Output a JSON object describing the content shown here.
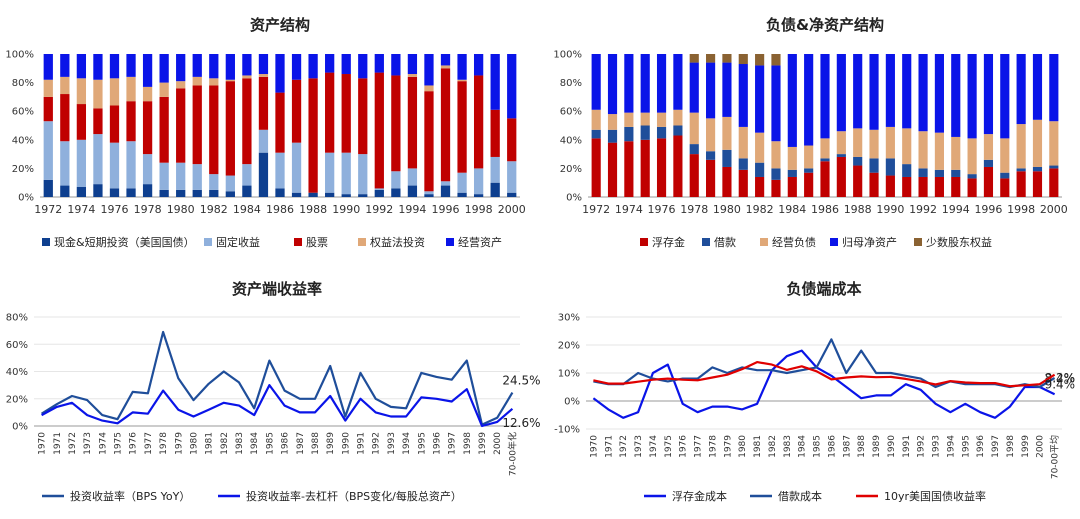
{
  "colors": {
    "cash": "#0e3f8f",
    "fixed": "#8fb0dc",
    "stocks": "#c00000",
    "equity_method": "#e0a878",
    "operating": "#0a14e8",
    "float": "#c00000",
    "borrowing": "#1f4e9a",
    "op_liab": "#e0a878",
    "net_assets": "#0a14e8",
    "minority": "#8a6232",
    "roi": "#1f4e9a",
    "roi_delev": "#0a14e8",
    "float_cost": "#0a14e8",
    "borrow_cost": "#1f4e9a",
    "treasury": "#e00000"
  },
  "chart_data": [
    {
      "id": "asset-structure",
      "type": "bar",
      "stacked": true,
      "title": "资产结构",
      "categories": [
        "1972",
        "1973",
        "1974",
        "1975",
        "1976",
        "1977",
        "1978",
        "1979",
        "1980",
        "1981",
        "1982",
        "1983",
        "1984",
        "1985",
        "1986",
        "1987",
        "1988",
        "1989",
        "1990",
        "1991",
        "1992",
        "1993",
        "1994",
        "1995",
        "1996",
        "1997",
        "1998",
        "1999",
        "2000"
      ],
      "tick_labels": [
        "1972",
        "1974",
        "1976",
        "1978",
        "1980",
        "1982",
        "1984",
        "1986",
        "1988",
        "1990",
        "1992",
        "1994",
        "1996",
        "1998",
        "2000"
      ],
      "ylim": [
        0,
        100
      ],
      "yticks": [
        "0%",
        "20%",
        "40%",
        "60%",
        "80%",
        "100%"
      ],
      "legend_position": "bottom",
      "series": [
        {
          "name": "现金&短期投资（美国国债）",
          "color_key": "cash",
          "values": [
            12,
            8,
            7,
            9,
            6,
            6,
            9,
            5,
            5,
            5,
            5,
            4,
            8,
            31,
            6,
            3,
            3,
            3,
            2,
            2,
            5,
            6,
            8,
            2,
            8,
            3,
            2,
            10,
            3
          ]
        },
        {
          "name": "固定收益",
          "color_key": "fixed",
          "values": [
            41,
            31,
            33,
            35,
            32,
            33,
            21,
            19,
            19,
            18,
            11,
            11,
            15,
            16,
            25,
            35,
            0,
            28,
            29,
            28,
            1,
            12,
            12,
            2,
            3,
            14,
            18,
            18,
            22
          ]
        },
        {
          "name": "股票",
          "color_key": "stocks",
          "values": [
            17,
            33,
            25,
            18,
            26,
            28,
            37,
            46,
            52,
            55,
            62,
            66,
            60,
            37,
            42,
            44,
            80,
            56,
            55,
            53,
            81,
            67,
            64,
            70,
            79,
            64,
            65,
            33,
            30
          ]
        },
        {
          "name": "权益法投资",
          "color_key": "equity_method",
          "values": [
            12,
            12,
            18,
            20,
            19,
            17,
            10,
            10,
            5,
            6,
            5,
            1,
            2,
            2,
            0,
            0,
            0,
            0,
            0,
            0,
            0,
            0,
            2,
            4,
            2,
            1,
            0,
            0,
            0
          ]
        },
        {
          "name": "经营资产",
          "color_key": "operating",
          "values": [
            18,
            16,
            17,
            18,
            17,
            16,
            23,
            20,
            19,
            16,
            17,
            18,
            15,
            14,
            27,
            18,
            17,
            13,
            14,
            17,
            13,
            15,
            14,
            22,
            8,
            18,
            15,
            39,
            45
          ]
        }
      ]
    },
    {
      "id": "liability-structure",
      "type": "bar",
      "stacked": true,
      "title": "负债&净资产结构",
      "categories": [
        "1972",
        "1973",
        "1974",
        "1975",
        "1976",
        "1977",
        "1978",
        "1979",
        "1980",
        "1981",
        "1982",
        "1983",
        "1984",
        "1985",
        "1986",
        "1987",
        "1988",
        "1989",
        "1990",
        "1991",
        "1992",
        "1993",
        "1994",
        "1995",
        "1996",
        "1997",
        "1998",
        "1999",
        "2000"
      ],
      "tick_labels": [
        "1972",
        "1974",
        "1976",
        "1978",
        "1980",
        "1982",
        "1984",
        "1986",
        "1988",
        "1990",
        "1992",
        "1994",
        "1996",
        "1998",
        "2000"
      ],
      "ylim": [
        0,
        100
      ],
      "yticks": [
        "0%",
        "20%",
        "40%",
        "60%",
        "80%",
        "100%"
      ],
      "legend_position": "bottom",
      "series": [
        {
          "name": "浮存金",
          "color_key": "float",
          "values": [
            41,
            38,
            39,
            40,
            41,
            43,
            30,
            26,
            21,
            19,
            14,
            12,
            14,
            17,
            25,
            28,
            22,
            17,
            15,
            14,
            14,
            14,
            14,
            13,
            21,
            13,
            18,
            18,
            20
          ]
        },
        {
          "name": "借款",
          "color_key": "borrowing",
          "values": [
            6,
            9,
            10,
            10,
            8,
            7,
            7,
            6,
            12,
            8,
            10,
            8,
            5,
            3,
            2,
            2,
            6,
            10,
            12,
            9,
            6,
            5,
            5,
            3,
            5,
            4,
            2,
            3,
            2
          ]
        },
        {
          "name": "经营负债",
          "color_key": "op_liab",
          "values": [
            14,
            11,
            10,
            9,
            10,
            11,
            22,
            23,
            23,
            22,
            21,
            19,
            16,
            16,
            14,
            16,
            20,
            20,
            22,
            25,
            26,
            26,
            23,
            25,
            18,
            24,
            31,
            33,
            31
          ]
        },
        {
          "name": "归母净资产",
          "color_key": "net_assets",
          "values": [
            39,
            42,
            41,
            41,
            41,
            39,
            35,
            39,
            38,
            44,
            47,
            53,
            65,
            64,
            59,
            54,
            52,
            53,
            51,
            52,
            54,
            55,
            58,
            59,
            56,
            59,
            49,
            46,
            47
          ]
        },
        {
          "name": "少数股东权益",
          "color_key": "minority",
          "values": [
            0,
            0,
            0,
            0,
            0,
            0,
            6,
            6,
            6,
            7,
            8,
            8,
            0,
            0,
            0,
            0,
            0,
            0,
            0,
            0,
            0,
            0,
            0,
            0,
            0,
            0,
            0,
            0,
            0
          ]
        }
      ]
    },
    {
      "id": "asset-return",
      "type": "line",
      "title": "资产端收益率",
      "categories": [
        "1970",
        "1971",
        "1972",
        "1973",
        "1974",
        "1975",
        "1976",
        "1977",
        "1978",
        "1979",
        "1980",
        "1981",
        "1982",
        "1983",
        "1984",
        "1985",
        "1986",
        "1987",
        "1988",
        "1989",
        "1990",
        "1991",
        "1992",
        "1993",
        "1994",
        "1995",
        "1996",
        "1997",
        "1998",
        "1999",
        "2000",
        "70-00年化"
      ],
      "ylim": [
        0,
        80
      ],
      "yticks": [
        "0%",
        "20%",
        "40%",
        "60%",
        "80%"
      ],
      "legend_position": "bottom",
      "series": [
        {
          "name": "投资收益率（BPS YoY）",
          "color_key": "roi",
          "values": [
            9,
            16,
            22,
            19,
            8,
            5,
            25,
            24,
            69,
            35,
            19,
            31,
            40,
            32,
            13,
            48,
            26,
            20,
            20,
            44,
            7,
            39,
            20,
            14,
            13,
            39,
            36,
            34,
            48,
            1,
            6,
            24.5
          ],
          "end_label": "24.5%"
        },
        {
          "name": "投资收益率-去杠杆（BPS变化/每股总资产）",
          "color_key": "roi_delev",
          "values": [
            8,
            14,
            17,
            8,
            4,
            2,
            10,
            9,
            26,
            12,
            7,
            12,
            17,
            15,
            8,
            30,
            15,
            10,
            10,
            22,
            4,
            20,
            10,
            7,
            7,
            21,
            20,
            18,
            27,
            0,
            3,
            12.6
          ],
          "end_label": "12.6%"
        }
      ]
    },
    {
      "id": "liability-cost",
      "type": "line",
      "title": "负债端成本",
      "categories": [
        "1970",
        "1971",
        "1972",
        "1973",
        "1974",
        "1975",
        "1976",
        "1977",
        "1978",
        "1979",
        "1980",
        "1981",
        "1982",
        "1983",
        "1984",
        "1985",
        "1986",
        "1987",
        "1988",
        "1989",
        "1990",
        "1991",
        "1992",
        "1993",
        "1994",
        "1995",
        "1996",
        "1997",
        "1998",
        "1999",
        "2000",
        "70-00平均"
      ],
      "ylim": [
        -10,
        30
      ],
      "yticks": [
        "-10%",
        "0%",
        "10%",
        "20%",
        "30%"
      ],
      "legend_position": "bottom",
      "series": [
        {
          "name": "浮存金成本",
          "color_key": "float_cost",
          "values": [
            1,
            -3,
            -6,
            -4,
            10,
            13,
            -1,
            -4,
            -2,
            -2,
            -3,
            -1,
            11,
            16,
            18,
            12,
            9,
            5,
            1,
            2,
            2,
            6,
            4,
            -1,
            -4,
            -1,
            -4,
            -6,
            -2,
            5,
            5,
            2.4
          ],
          "end_label": "2.4%"
        },
        {
          "name": "借款成本",
          "color_key": "borrow_cost",
          "values": [
            7,
            6,
            6,
            10,
            8,
            7,
            8,
            8,
            12,
            10,
            12,
            11,
            11,
            10,
            11,
            12,
            22,
            10,
            18,
            10,
            10,
            9,
            8,
            5,
            7,
            6,
            6,
            6,
            5,
            6,
            5,
            8.2
          ],
          "end_label": "8.2%"
        },
        {
          "name": "10yr美国国债收益率",
          "color_key": "treasury",
          "values": [
            7.4,
            6.2,
            6.2,
            6.9,
            7.6,
            8.0,
            7.6,
            7.4,
            8.4,
            9.4,
            11.4,
            13.9,
            13.0,
            11.1,
            12.4,
            10.6,
            7.7,
            8.4,
            8.8,
            8.5,
            8.6,
            7.9,
            7.0,
            5.9,
            7.1,
            6.6,
            6.4,
            6.4,
            5.3,
            5.6,
            6.0,
            9.4
          ],
          "end_label": "9.4%"
        }
      ]
    }
  ]
}
